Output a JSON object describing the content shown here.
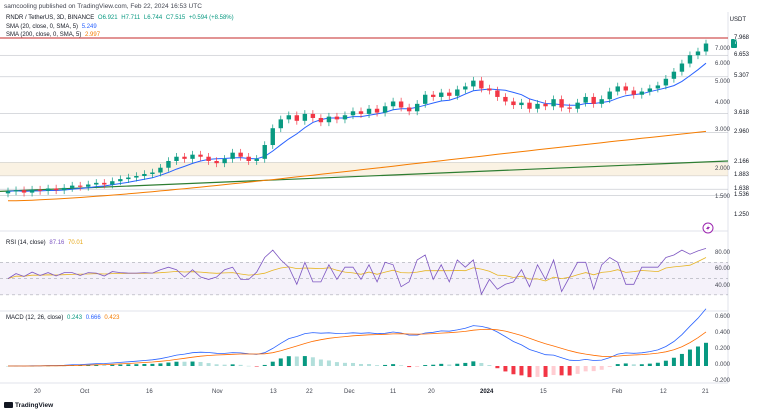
{
  "header": {
    "publish_line": "samcooling published on TradingView.com, Feb 22, 2024 16:53 UTC"
  },
  "main_legend": {
    "symbol": "RNDR / TetherUS, 3D, BINANCE",
    "open": "O6.921",
    "high": "H7.711",
    "low": "L6.744",
    "close": "C7.515",
    "change": "+0.594 (+8.58%)"
  },
  "sma20_legend": {
    "label": "SMA (20, close, 0, SMA, 5)",
    "value": "5.249"
  },
  "sma200_legend": {
    "label": "SMA (200, close, 0, SMA, 5)",
    "value": "2.997"
  },
  "rsi_legend": {
    "label": "RSI (14, close)",
    "rsi": "87.16",
    "ma": "70.01"
  },
  "macd_legend": {
    "label": "MACD (12, 26, close)",
    "hist": "0.243",
    "macd": "0.666",
    "signal": "0.423"
  },
  "currency": "USDT",
  "price_axis": {
    "ticks": [
      "7.000",
      "6.000",
      "5.000",
      "4.000",
      "3.000",
      "2.000",
      "1.500"
    ],
    "tags": [
      {
        "value": "7.968",
        "kind": "plain"
      },
      {
        "value": "7.515",
        "kind": "current"
      },
      {
        "value": "6.653",
        "kind": "plain"
      },
      {
        "value": "5.307",
        "kind": "plain"
      },
      {
        "value": "3.618",
        "kind": "plain"
      },
      {
        "value": "2.960",
        "kind": "plain"
      },
      {
        "value": "2.166",
        "kind": "plain"
      },
      {
        "value": "1.883",
        "kind": "plain"
      },
      {
        "value": "1.638",
        "kind": "plain"
      },
      {
        "value": "1.536",
        "kind": "plain"
      },
      {
        "value": "1.250",
        "kind": "plain"
      }
    ]
  },
  "rsi_axis": [
    "80.00",
    "60.00",
    "40.00"
  ],
  "macd_axis": [
    "0.600",
    "0.400",
    "0.200",
    "0.000",
    "-0.200"
  ],
  "time_axis": [
    {
      "label": "20",
      "bold": false
    },
    {
      "label": "Oct",
      "bold": false
    },
    {
      "label": "16",
      "bold": false
    },
    {
      "label": "Nov",
      "bold": false
    },
    {
      "label": "13",
      "bold": false
    },
    {
      "label": "22",
      "bold": false
    },
    {
      "label": "Dec",
      "bold": false
    },
    {
      "label": "11",
      "bold": false
    },
    {
      "label": "20",
      "bold": false
    },
    {
      "label": "2024",
      "bold": true
    },
    {
      "label": "15",
      "bold": false
    },
    {
      "label": "Feb",
      "bold": false
    },
    {
      "label": "12",
      "bold": false
    },
    {
      "label": "21",
      "bold": false
    }
  ],
  "colors": {
    "up": "#089981",
    "down": "#f23645",
    "sma20": "#2962ff",
    "sma200": "#f57c00",
    "trend": "#2e7d32",
    "resistance": "#c62828",
    "rsi": "#7e57c2",
    "rsi_ma": "#e6b422",
    "macd": "#2962ff",
    "signal": "#ff6d00"
  },
  "chart_data": {
    "type": "candlestick",
    "interval": "3D",
    "closes": [
      1.6,
      1.62,
      1.58,
      1.63,
      1.61,
      1.65,
      1.62,
      1.66,
      1.7,
      1.68,
      1.72,
      1.75,
      1.72,
      1.78,
      1.82,
      1.85,
      1.88,
      1.92,
      1.95,
      2.05,
      2.2,
      2.3,
      2.25,
      2.35,
      2.3,
      2.2,
      2.15,
      2.25,
      2.4,
      2.3,
      2.2,
      2.25,
      2.6,
      3.1,
      3.4,
      3.55,
      3.35,
      3.6,
      3.45,
      3.3,
      3.5,
      3.4,
      3.55,
      3.7,
      3.6,
      3.8,
      3.65,
      3.9,
      4.1,
      3.85,
      3.7,
      4.0,
      4.4,
      4.3,
      4.5,
      4.35,
      4.65,
      4.8,
      5.1,
      4.7,
      4.6,
      4.3,
      4.1,
      3.95,
      4.05,
      3.8,
      4.0,
      3.9,
      4.2,
      3.85,
      3.8,
      4.05,
      4.3,
      4.0,
      4.2,
      4.55,
      4.8,
      4.6,
      4.4,
      4.55,
      4.7,
      4.85,
      5.2,
      5.6,
      6.1,
      6.65,
      6.92,
      7.52
    ],
    "sma20_end": 5.249,
    "sma200_end": 2.997,
    "rsi_end": 87.16,
    "rsi_ma_end": 70.01,
    "macd_end": 0.666,
    "signal_end": 0.423,
    "hist_end": 0.243
  }
}
